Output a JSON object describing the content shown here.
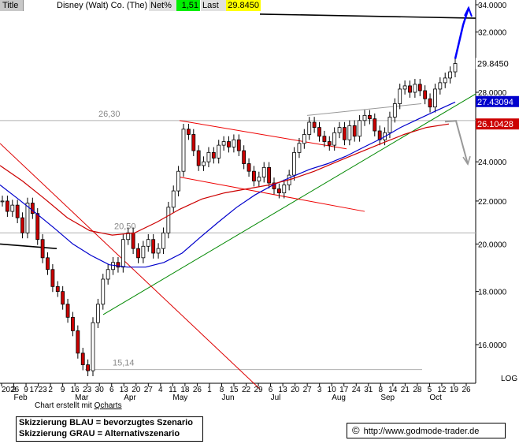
{
  "header": {
    "title_label": "Title",
    "instrument": "Disney (Walt) Co. (The)",
    "net_label": "Net%",
    "net_value": "1,51",
    "last_label": "Last",
    "last_value": "29.8450"
  },
  "footer": {
    "credit_prefix": "Chart erstellt mit ",
    "credit_link": "Qcharts",
    "legend_blue": "Skizzierung BLAU = bevorzugtes Szenario",
    "legend_gray": "Skizzierung GRAU = Alternativszenario",
    "copyright_symbol": "©",
    "url": "http://www.godmode-trader.de"
  },
  "chart_data": {
    "type": "candlestick",
    "y_axis": {
      "label": "LOG",
      "scale": "log",
      "ticks": [
        "16.0000",
        "18.0000",
        "20.0000",
        "22.0000",
        "24.0000",
        "26.0000",
        "28.0000",
        "32.0000",
        "34.0000"
      ]
    },
    "y_axis_highlights": [
      {
        "label": "29.8450",
        "value": 29.845,
        "color": "#000000",
        "text_color": "#000000"
      },
      {
        "label": "27.43094",
        "value": 27.43,
        "color": "#0000cc",
        "text_color": "#ffffff"
      },
      {
        "label": "26.10428",
        "value": 26.1,
        "color": "#cc0000",
        "text_color": "#ffffff"
      }
    ],
    "x_axis": {
      "day_ticks": [
        "2026",
        "2",
        "9",
        "1723",
        "2",
        "9",
        "16",
        "23",
        "30",
        "6",
        "13",
        "20",
        "27",
        "4",
        "11",
        "18",
        "26",
        "1",
        "8",
        "15",
        "22",
        "29",
        "6",
        "13",
        "20",
        "27",
        "3",
        "10",
        "17",
        "24",
        "31",
        "8",
        "14",
        "21",
        "28",
        "5",
        "12",
        "19",
        "26"
      ],
      "month_labels": [
        "Feb",
        "Mar",
        "Apr",
        "May",
        "Jun",
        "Jul",
        "Aug",
        "Sep",
        "Oct"
      ]
    },
    "horizontal_levels": [
      {
        "label": "26,30",
        "value": 26.3
      },
      {
        "label": "20,50",
        "value": 20.5
      },
      {
        "label": "15,14",
        "value": 15.14
      }
    ],
    "series": [
      {
        "name": "price",
        "values": [
          22.0,
          21.5,
          21.8,
          21.2,
          20.5,
          21.9,
          21.4,
          20.2,
          19.4,
          18.9,
          18.2,
          18.0,
          17.5,
          17.0,
          16.5,
          15.7,
          15.3,
          15.1,
          16.8,
          17.5,
          18.5,
          18.9,
          19.2,
          19.0,
          20.2,
          20.5,
          19.8,
          19.4,
          19.9,
          20.2,
          19.6,
          19.8,
          20.5,
          21.7,
          22.5,
          23.5,
          25.8,
          25.5,
          24.6,
          23.8,
          24.0,
          24.5,
          24.2,
          24.9,
          25.1,
          24.8,
          25.2,
          24.6,
          23.9,
          23.5,
          23.0,
          23.2,
          23.7,
          22.9,
          22.6,
          22.4,
          22.8,
          23.3,
          24.5,
          25.0,
          25.5,
          26.2,
          25.9,
          25.4,
          25.1,
          24.9,
          25.6,
          25.9,
          25.2,
          26.0,
          25.4,
          26.3,
          26.6,
          26.4,
          25.7,
          25.2,
          25.6,
          26.5,
          27.3,
          28.2,
          28.4,
          28.0,
          28.5,
          28.1,
          27.6,
          27.1,
          28.2,
          28.6,
          28.9,
          29.3,
          29.845
        ]
      },
      {
        "name": "MA short",
        "color": "#0000cc",
        "values": [
          22.8,
          22.1,
          21.4,
          20.7,
          20.0,
          19.5,
          19.1,
          19.0,
          19.0,
          19.2,
          19.6,
          20.3,
          21.0,
          21.7,
          22.3,
          22.8,
          23.2,
          23.6,
          23.9,
          24.3,
          24.8,
          25.3,
          25.9,
          26.4,
          26.9,
          27.4
        ]
      },
      {
        "name": "MA long",
        "color": "#cc0000",
        "values": [
          23.8,
          23.0,
          22.1,
          21.2,
          20.6,
          20.4,
          20.5,
          21.0,
          21.6,
          22.1,
          22.4,
          22.6,
          22.8,
          23.1,
          23.5,
          24.0,
          24.5,
          25.0,
          25.5,
          25.9,
          26.1
        ]
      }
    ],
    "scenarios": [
      {
        "name": "bevorzugtes Szenario",
        "color": "#0000ff",
        "from": 29.845,
        "to": 34.0
      },
      {
        "name": "Alternativszenario",
        "color": "#999999",
        "from": 26.1,
        "to": 24.0
      }
    ]
  }
}
